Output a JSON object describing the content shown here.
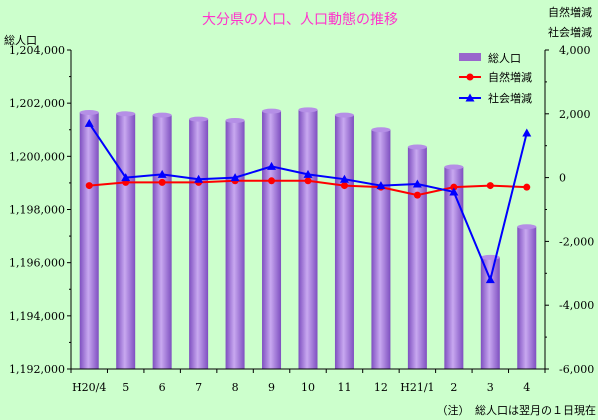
{
  "chart_data": {
    "type": "bar+line",
    "title": "大分県の人口、人口動態の推移",
    "categories": [
      "H20/4",
      "5",
      "6",
      "7",
      "8",
      "9",
      "10",
      "11",
      "12",
      "H21/1",
      "2",
      "3",
      "4"
    ],
    "left_axis": {
      "label": "総人口",
      "min": 1192000,
      "max": 1204000,
      "step": 2000,
      "ticks": [
        "1,192,000",
        "1,194,000",
        "1,196,000",
        "1,198,000",
        "1,200,000",
        "1,202,000",
        "1,204,000"
      ]
    },
    "right_axis": {
      "label_line1": "自然増減",
      "label_line2": "社会増減",
      "min": -6000,
      "max": 4000,
      "step": 2000,
      "ticks": [
        "-6,000",
        "-4,000",
        "-2,000",
        "0",
        "2,000",
        "4,000"
      ]
    },
    "series": [
      {
        "name": "総人口",
        "kind": "bar",
        "axis": "left",
        "color": "#9966cc",
        "values": [
          1201650,
          1201600,
          1201550,
          1201400,
          1201350,
          1201700,
          1201750,
          1201550,
          1201000,
          1200350,
          1199600,
          1196200,
          1197350
        ]
      },
      {
        "name": "自然増減",
        "kind": "line",
        "axis": "right",
        "color": "#ff0000",
        "values": [
          -250,
          -150,
          -150,
          -150,
          -100,
          -100,
          -100,
          -250,
          -300,
          -550,
          -300,
          -250,
          -300
        ]
      },
      {
        "name": "社会増減",
        "kind": "line",
        "axis": "right",
        "color": "#0000ff",
        "values": [
          1700,
          0,
          100,
          -50,
          0,
          350,
          100,
          -50,
          -250,
          -200,
          -450,
          -3200,
          1400
        ]
      }
    ],
    "legend_position": "top-right",
    "grid": false,
    "note": "（注）　総人口は翌月の１日現在"
  }
}
